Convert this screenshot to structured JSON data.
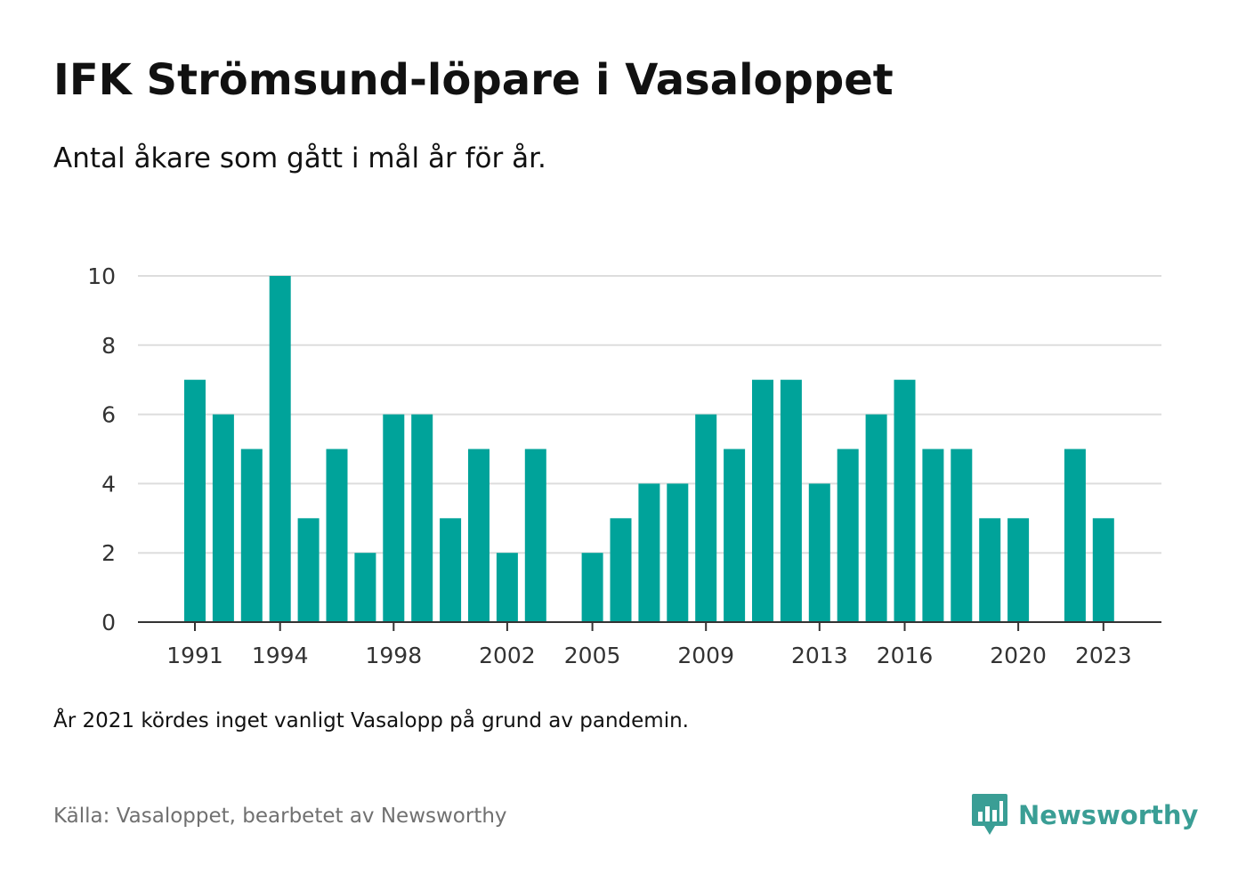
{
  "header": {
    "title": "IFK Strömsund-löpare i Vasaloppet",
    "subtitle": "Antal åkare som gått i mål år för år."
  },
  "footer": {
    "note": "År 2021 kördes inget vanligt Vasalopp på grund av pandemin.",
    "source": "Källa: Vasaloppet, bearbetet av Newsworthy",
    "brand": "Newsworthy",
    "brand_icon": "bar-chart-pin-icon"
  },
  "colors": {
    "bar": "#00a39a",
    "grid": "#dddddd",
    "axis": "#333333",
    "brand": "#3a9e95"
  },
  "chart_data": {
    "type": "bar",
    "categories": [
      "1991",
      "1992",
      "1993",
      "1994",
      "1995",
      "1996",
      "1997",
      "1998",
      "1999",
      "2000",
      "2001",
      "2002",
      "2003",
      "2004",
      "2005",
      "2006",
      "2007",
      "2008",
      "2009",
      "2010",
      "2011",
      "2012",
      "2013",
      "2014",
      "2015",
      "2016",
      "2017",
      "2018",
      "2019",
      "2020",
      "2021",
      "2022",
      "2023"
    ],
    "values": [
      7,
      6,
      5,
      10,
      3,
      5,
      2,
      6,
      6,
      3,
      5,
      2,
      5,
      0,
      2,
      3,
      4,
      4,
      6,
      5,
      7,
      7,
      4,
      5,
      6,
      7,
      5,
      5,
      3,
      3,
      0,
      5,
      3
    ],
    "x_tick_labels": [
      "1991",
      "1994",
      "1998",
      "2002",
      "2005",
      "2009",
      "2013",
      "2016",
      "2020",
      "2023"
    ],
    "y_ticks": [
      0,
      2,
      4,
      6,
      8,
      10
    ],
    "ylim": [
      0,
      10
    ],
    "grid": true,
    "legend": "none",
    "xlabel": "",
    "ylabel": ""
  }
}
